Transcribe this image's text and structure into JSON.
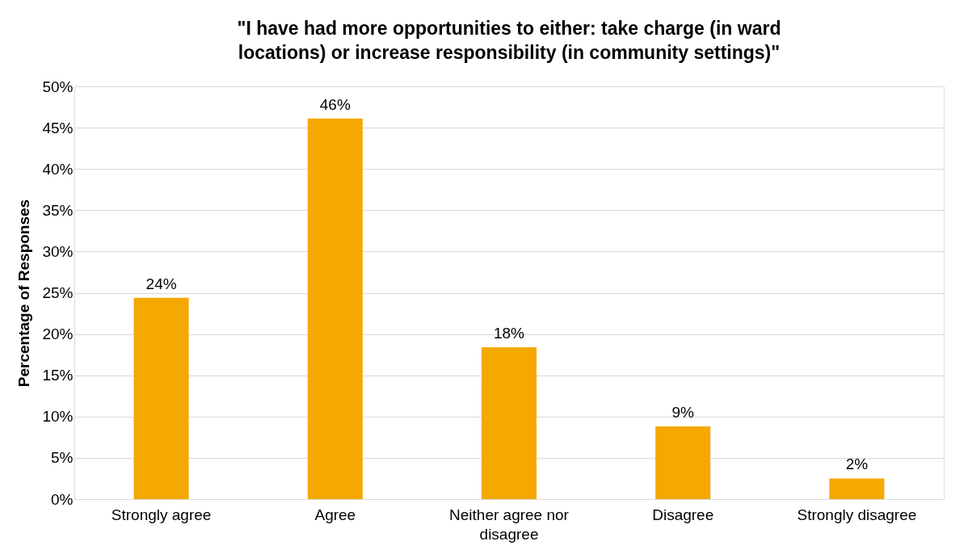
{
  "chart_data": {
    "type": "bar",
    "title": "\"I have had more opportunities to either: take charge (in ward locations) or increase responsibility (in community settings)\"",
    "ylabel": "Percentage of Responses",
    "categories": [
      "Strongly agree",
      "Agree",
      "Neither agree nor disagree",
      "Disagree",
      "Strongly disagree"
    ],
    "values": [
      24.4,
      46.1,
      18.4,
      8.8,
      2.5
    ],
    "value_labels": [
      "24%",
      "46%",
      "18%",
      "9%",
      "2%"
    ],
    "color": "#f5a800",
    "ylim": [
      0,
      50
    ],
    "yticks": [
      {
        "value": 0,
        "label": "0%"
      },
      {
        "value": 5,
        "label": "5%"
      },
      {
        "value": 10,
        "label": "10%"
      },
      {
        "value": 15,
        "label": "15%"
      },
      {
        "value": 20,
        "label": "20%"
      },
      {
        "value": 25,
        "label": "25%"
      },
      {
        "value": 30,
        "label": "30%"
      },
      {
        "value": 35,
        "label": "35%"
      },
      {
        "value": 40,
        "label": "40%"
      },
      {
        "value": 45,
        "label": "45%"
      },
      {
        "value": 50,
        "label": "50%"
      }
    ],
    "grid": "y"
  }
}
